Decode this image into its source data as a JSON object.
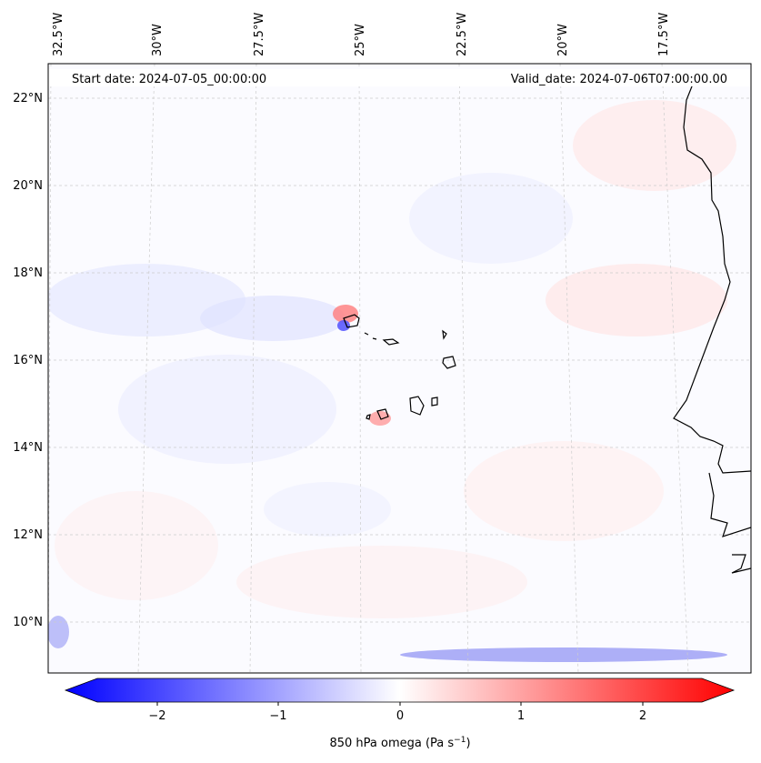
{
  "map": {
    "start_date_label": "Start date: 2024-07-05_00:00:00",
    "valid_date_label": "Valid_date: 2024-07-06T07:00:00.00",
    "lon_ticks": [
      "32.5°W",
      "30°W",
      "27.5°W",
      "25°W",
      "22.5°W",
      "20°W",
      "17.5°W"
    ],
    "lat_ticks": [
      "22°N",
      "20°N",
      "18°N",
      "16°N",
      "14°N",
      "12°N",
      "10°N"
    ]
  },
  "colorbar": {
    "label": "850 hPa omega (Pa s",
    "label_sup": "−1",
    "label_end": ")",
    "ticks": [
      "−2",
      "−1",
      "0",
      "1",
      "2"
    ],
    "range": [
      -2.7,
      2.7
    ],
    "tick_values": [
      -2,
      -1,
      0,
      1,
      2
    ],
    "colors": {
      "negative": "#0000ff",
      "zero": "#ffffff",
      "positive": "#ff0000"
    }
  }
}
